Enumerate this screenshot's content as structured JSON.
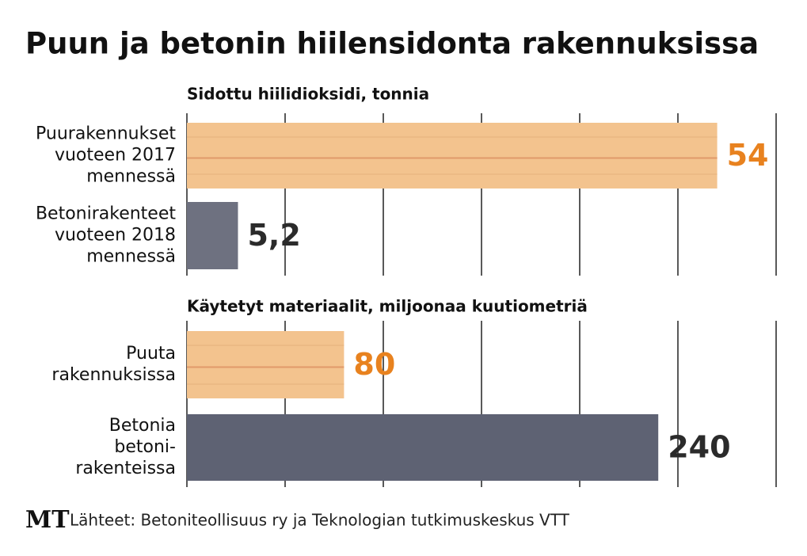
{
  "title": "Puun ja betonin hiilensidonta rakennuksissa",
  "logo": "MT",
  "source": "Lähteet: Betoniteollisuus ry ja Teknologian tutkimuskeskus VTT",
  "chart_data": [
    {
      "type": "bar",
      "orientation": "horizontal",
      "subtitle": "Sidottu hiilidioksidi, tonnia",
      "categories": [
        [
          "Puurakennukset",
          "vuoteen 2017",
          "mennessä"
        ],
        [
          "Betonirakenteet",
          "vuoteen 2018",
          "mennessä"
        ]
      ],
      "values": [
        54,
        5.2
      ],
      "value_labels": [
        "54",
        "5,2"
      ],
      "colors": [
        "#f3c38e",
        "#6e7180"
      ],
      "label_colors": [
        "#e8821f",
        "#2b2b2b"
      ],
      "xlim": [
        0,
        60
      ],
      "xticks": [
        0,
        10,
        20,
        30,
        40,
        50,
        60
      ],
      "grid": true
    },
    {
      "type": "bar",
      "orientation": "horizontal",
      "subtitle": "Käytetyt materiaalit, miljoonaa kuutiometriä",
      "categories": [
        [
          "Puuta",
          "rakennuksissa"
        ],
        [
          "Betonia",
          "betoni-",
          "rakenteissa"
        ]
      ],
      "values": [
        80,
        240
      ],
      "colors": [
        "#f3c38e",
        "#5e6273"
      ],
      "label_colors": [
        "#e8821f",
        "#2b2b2b"
      ],
      "xlim": [
        0,
        300
      ],
      "xticks": [
        0,
        50,
        100,
        150,
        200,
        250,
        300
      ],
      "grid": true
    }
  ]
}
